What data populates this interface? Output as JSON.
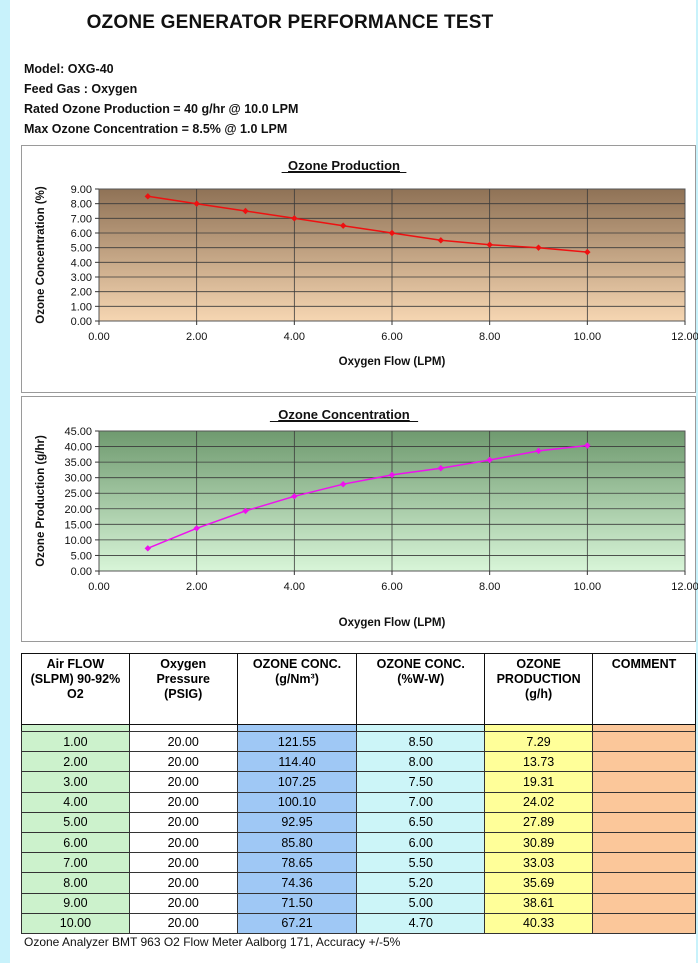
{
  "title": "OZONE GENERATOR PERFORMANCE TEST",
  "meta": [
    "Model: OXG-40",
    "Feed Gas :  Oxygen",
    "Rated Ozone Production = 40 g/hr @ 10.0 LPM",
    "Max Ozone Concentration = 8.5% @ 1.0 LPM"
  ],
  "chart_data": [
    {
      "type": "line",
      "title": "Ozone Production",
      "xlabel": "Oxygen Flow (LPM)",
      "ylabel": "Ozone Concentration (%)",
      "xlim": [
        0,
        12
      ],
      "ylim": [
        0,
        9
      ],
      "x_ticks": [
        "0.00",
        "2.00",
        "4.00",
        "6.00",
        "8.00",
        "10.00",
        "12.00"
      ],
      "y_ticks": [
        "0.00",
        "1.00",
        "2.00",
        "3.00",
        "4.00",
        "5.00",
        "6.00",
        "7.00",
        "8.00",
        "9.00"
      ],
      "grid": true,
      "series": [
        {
          "x": [
            1,
            2,
            3,
            4,
            5,
            6,
            7,
            8,
            9,
            10
          ],
          "values": [
            8.5,
            8.0,
            7.5,
            7.0,
            6.5,
            6.0,
            5.5,
            5.2,
            5.0,
            4.7
          ],
          "color": "#ee1111"
        }
      ],
      "plot_colors": {
        "top": "#8f7256",
        "bottom": "#f6d6b2"
      }
    },
    {
      "type": "line",
      "title": "Ozone Concentration",
      "xlabel": "Oxygen Flow (LPM)",
      "ylabel": "Ozone Production (g/hr)",
      "xlim": [
        0,
        12
      ],
      "ylim": [
        0,
        45
      ],
      "x_ticks": [
        "0.00",
        "2.00",
        "4.00",
        "6.00",
        "8.00",
        "10.00",
        "12.00"
      ],
      "y_ticks": [
        "0.00",
        "5.00",
        "10.00",
        "15.00",
        "20.00",
        "25.00",
        "30.00",
        "35.00",
        "40.00",
        "45.00"
      ],
      "grid": true,
      "series": [
        {
          "x": [
            1,
            2,
            3,
            4,
            5,
            6,
            7,
            8,
            9,
            10
          ],
          "values": [
            7.29,
            13.73,
            19.31,
            24.02,
            27.89,
            30.89,
            33.03,
            35.69,
            38.61,
            40.33
          ],
          "color": "#ee11ee"
        }
      ],
      "plot_colors": {
        "top": "#6f9a6f",
        "bottom": "#d8f5d8"
      }
    }
  ],
  "table": {
    "headers": [
      [
        "Air FLOW",
        "(SLPM) 90-92%",
        "O2"
      ],
      [
        "Oxygen",
        "Pressure",
        "(PSIG)"
      ],
      [
        "OZONE CONC.",
        "(g/Nm³)"
      ],
      [
        "OZONE CONC.",
        "(%W-W)"
      ],
      [
        "OZONE",
        "PRODUCTION",
        "(g/h)"
      ],
      [
        "COMMENT"
      ]
    ],
    "rows": [
      [
        "1.00",
        "20.00",
        "121.55",
        "8.50",
        "7.29",
        ""
      ],
      [
        "2.00",
        "20.00",
        "114.40",
        "8.00",
        "13.73",
        ""
      ],
      [
        "3.00",
        "20.00",
        "107.25",
        "7.50",
        "19.31",
        ""
      ],
      [
        "4.00",
        "20.00",
        "100.10",
        "7.00",
        "24.02",
        ""
      ],
      [
        "5.00",
        "20.00",
        "92.95",
        "6.50",
        "27.89",
        ""
      ],
      [
        "6.00",
        "20.00",
        "85.80",
        "6.00",
        "30.89",
        ""
      ],
      [
        "7.00",
        "20.00",
        "78.65",
        "5.50",
        "33.03",
        ""
      ],
      [
        "8.00",
        "20.00",
        "74.36",
        "5.20",
        "35.69",
        ""
      ],
      [
        "9.00",
        "20.00",
        "71.50",
        "5.00",
        "38.61",
        ""
      ],
      [
        "10.00",
        "20.00",
        "67.21",
        "4.70",
        "40.33",
        ""
      ]
    ]
  },
  "footer": "Ozone Analyzer BMT 963 O2 Flow Meter Aalborg 171, Accuracy +/-5%"
}
